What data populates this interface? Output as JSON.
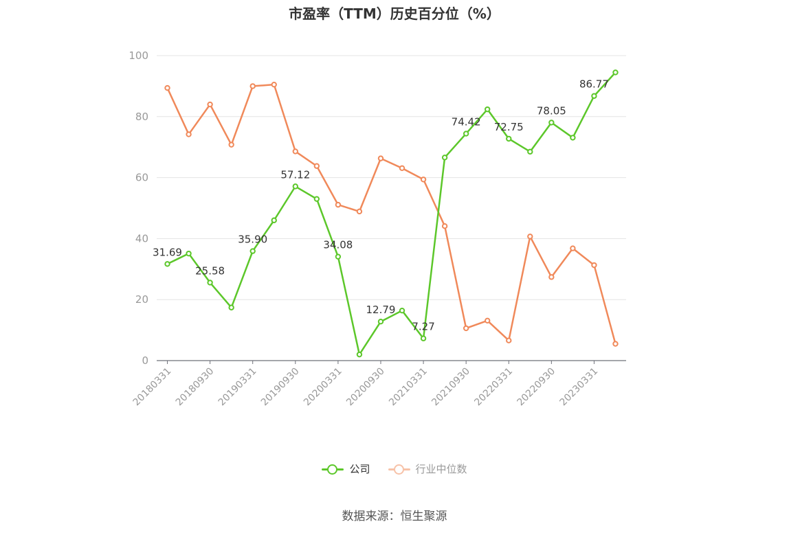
{
  "chart_data": {
    "type": "line",
    "title": "市盈率（TTM）历史百分位（%）",
    "ylim": [
      0,
      100
    ],
    "yticks": [
      0,
      20,
      40,
      60,
      80,
      100
    ],
    "x": [
      "20180331",
      "20180630",
      "20180930",
      "20181231",
      "20190331",
      "20190630",
      "20190930",
      "20191231",
      "20200331",
      "20200630",
      "20200930",
      "20201231",
      "20210331",
      "20210630",
      "20210930",
      "20211231",
      "20220331",
      "20220630",
      "20220930",
      "20221231",
      "20230331",
      "20230630"
    ],
    "x_tick_labels": [
      "20180331",
      "20180930",
      "20190331",
      "20190930",
      "20200331",
      "20200930",
      "20210331",
      "20210930",
      "20220331",
      "20220930",
      "20230331"
    ],
    "grid": true,
    "legend_position": "bottom",
    "series": [
      {
        "name": "公司",
        "color": "#5cc72a",
        "values": [
          31.69,
          35.1,
          25.58,
          17.4,
          35.9,
          46.0,
          57.12,
          53.0,
          34.08,
          2.0,
          12.79,
          16.4,
          7.27,
          66.6,
          74.42,
          82.4,
          72.75,
          68.5,
          78.05,
          73.1,
          86.77,
          94.5
        ],
        "labels": [
          "31.69",
          "",
          "25.58",
          "",
          "35.90",
          "",
          "57.12",
          "",
          "34.08",
          "",
          "12.79",
          "",
          "7.27",
          "",
          "74.42",
          "",
          "72.75",
          "",
          "78.05",
          "",
          "86.77",
          ""
        ]
      },
      {
        "name": "行业中位数",
        "color": "#f0895a",
        "values": [
          89.4,
          74.2,
          84.0,
          70.8,
          90.0,
          90.5,
          68.6,
          63.8,
          51.1,
          48.9,
          66.3,
          63.1,
          59.4,
          44.1,
          10.6,
          13.1,
          6.6,
          40.7,
          27.4,
          36.8,
          31.3,
          5.5
        ],
        "labels": []
      }
    ]
  },
  "legend": {
    "company": "公司",
    "industry": "行业中位数"
  },
  "source": "数据来源：恒生聚源"
}
